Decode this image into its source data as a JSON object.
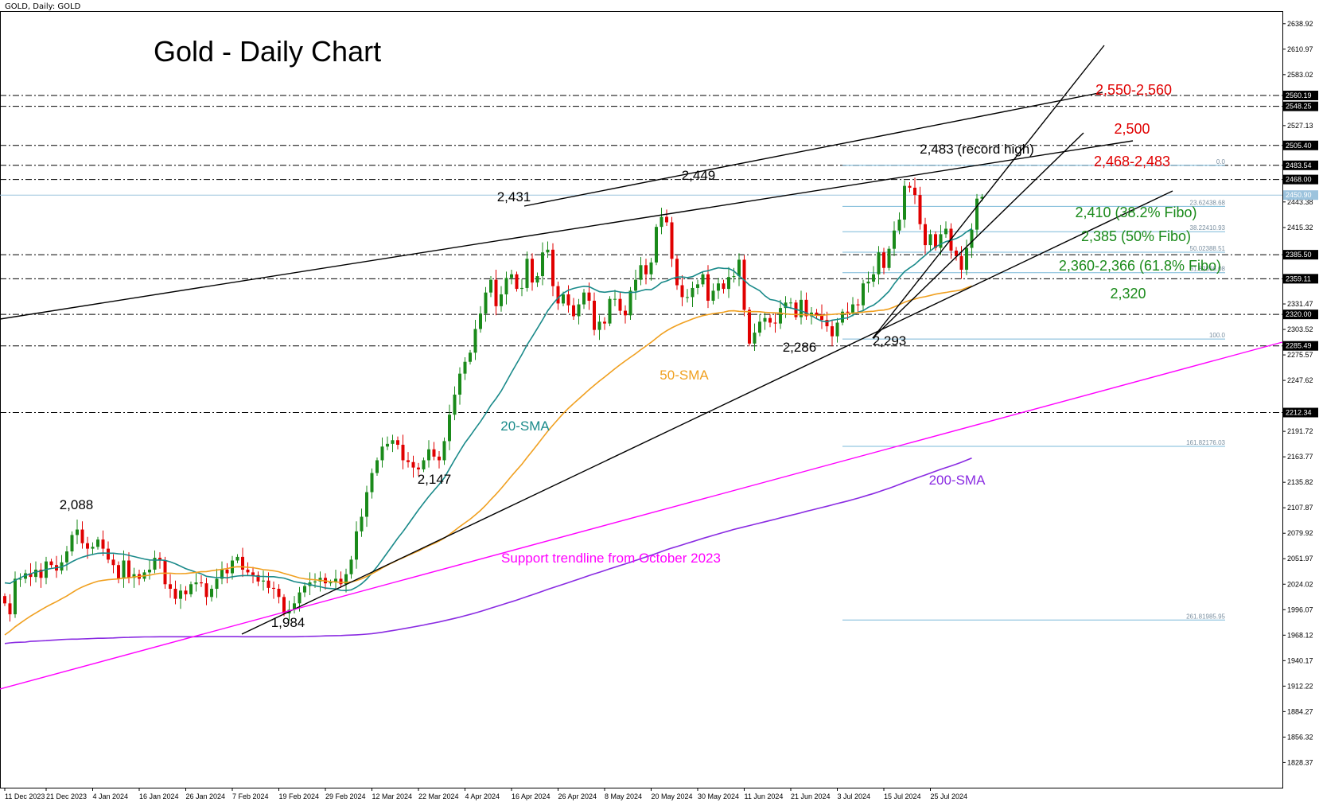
{
  "header": "GOLD, Daily:  GOLD",
  "chart_title": "Gold - Daily Chart",
  "chart_data": {
    "type": "candlestick",
    "symbol": "GOLD",
    "timeframe": "Daily",
    "ylim": [
      1800.8,
      2652.7
    ],
    "x_ticks": [
      "11 Dec 2023",
      "21 Dec 2023",
      "4 Jan 2024",
      "16 Jan 2024",
      "26 Jan 2024",
      "7 Feb 2024",
      "19 Feb 2024",
      "29 Feb 2024",
      "12 Mar 2024",
      "22 Mar 2024",
      "4 Apr 2024",
      "16 Apr 2024",
      "26 Apr 2024",
      "8 May 2024",
      "20 May 2024",
      "30 May 2024",
      "11 Jun 2024",
      "21 Jun 2024",
      "3 Jul 2024",
      "15 Jul 2024",
      "25 Jul 2024"
    ],
    "y_ticks": [
      "2638.92",
      "2610.97",
      "2583.02",
      "2560.19",
      "2548.25",
      "2527.13",
      "2505.40",
      "2483.54",
      "2468.00",
      "2450.90",
      "2443.38",
      "2415.32",
      "2385.50",
      "2359.11",
      "2331.47",
      "2320.00",
      "2303.52",
      "2285.49",
      "2275.57",
      "2247.62",
      "2212.34",
      "2191.72",
      "2163.77",
      "2135.82",
      "2107.87",
      "2079.92",
      "2051.97",
      "2024.02",
      "1996.07",
      "1968.12",
      "1940.17",
      "1912.22",
      "1884.27",
      "1856.32",
      "1828.37"
    ],
    "close": [
      2003,
      1991,
      2030,
      2030,
      2036,
      2032,
      2040,
      2031,
      2049,
      2045,
      2039,
      2048,
      2060,
      2078,
      2084,
      2069,
      2063,
      2065,
      2073,
      2063,
      2051,
      2045,
      2030,
      2050,
      2031,
      2035,
      2030,
      2037,
      2040,
      2053,
      2050,
      2024,
      2019,
      2008,
      2017,
      2013,
      2024,
      2026,
      2025,
      2010,
      2019,
      2030,
      2040,
      2036,
      2050,
      2054,
      2040,
      2037,
      2034,
      2027,
      2028,
      2020,
      2019,
      2010,
      1992,
      1996,
      2003,
      2015,
      2022,
      2026,
      2027,
      2031,
      2025,
      2026,
      2030,
      2024,
      2035,
      2051,
      2082,
      2098,
      2125,
      2146,
      2160,
      2175,
      2178,
      2182,
      2177,
      2160,
      2158,
      2152,
      2150,
      2160,
      2172,
      2164,
      2160,
      2181,
      2210,
      2232,
      2255,
      2268,
      2278,
      2304,
      2321,
      2344,
      2358,
      2329,
      2342,
      2360,
      2364,
      2348,
      2349,
      2381,
      2355,
      2362,
      2388,
      2391,
      2351,
      2332,
      2342,
      2330,
      2318,
      2331,
      2344,
      2335,
      2303,
      2312,
      2310,
      2337,
      2337,
      2324,
      2319,
      2346,
      2358,
      2374,
      2364,
      2377,
      2416,
      2427,
      2421,
      2381,
      2352,
      2339,
      2339,
      2349,
      2353,
      2364,
      2335,
      2346,
      2354,
      2348,
      2361,
      2362,
      2380,
      2325,
      2288,
      2300,
      2312,
      2316,
      2311,
      2310,
      2327,
      2333,
      2333,
      2317,
      2336,
      2318,
      2322,
      2320,
      2314,
      2307,
      2296,
      2311,
      2323,
      2322,
      2331,
      2330,
      2354,
      2356,
      2364,
      2388,
      2371,
      2392,
      2412,
      2424,
      2461,
      2459,
      2451,
      2419,
      2396,
      2408,
      2393,
      2408,
      2414,
      2390,
      2384,
      2369,
      2393,
      2413,
      2447,
      2449
    ],
    "series": [
      {
        "name": "20-SMA",
        "color": "#1a8a8a",
        "values": [
          2025.5,
          2024.9,
          2028.3,
          2031.1,
          2033.7,
          2035.4,
          2037.5,
          2038.3,
          2040.2,
          2041.3,
          2042.1,
          2043.0,
          2045.4,
          2048.7,
          2051.5,
          2053.7,
          2055.4,
          2056.6,
          2057.9,
          2058.2,
          2058.0,
          2058.0,
          2057.3,
          2057.0,
          2055.7,
          2054.4,
          2053.0,
          2051.7,
          2050.6,
          2050.4,
          2050.6,
          2050.2,
          2048.6,
          2046.4,
          2043.8,
          2041.1,
          2039.2,
          2037.2,
          2035.4,
          2032.7,
          2031.9,
          2031.2,
          2031.7,
          2031.0,
          2032.2,
          2033.0,
          2033.5,
          2033.5,
          2033.3,
          2032.6,
          2032.5,
          2032.3,
          2032.3,
          2031.4,
          2030.7,
          2028.8,
          2026.9,
          2025.8,
          2024.8,
          2023.6,
          2022.2,
          2021.3,
          2019.8,
          2019.3,
          2018.8,
          2017.3,
          2017.1,
          2017.8,
          2020.7,
          2024.5,
          2029.6,
          2036.3,
          2043.2,
          2050.9,
          2058.7,
          2066.6,
          2074.5,
          2081.7,
          2089.6,
          2097.6,
          2105.5,
          2112.9,
          2120.3,
          2126.9,
          2133.4,
          2140.8,
          2150.6,
          2160.5,
          2170.0,
          2179.1,
          2186.7,
          2194.7,
          2202.5,
          2211.0,
          2220.2,
          2227.6,
          2235.9,
          2246.0,
          2256.3,
          2266.1,
          2276.0,
          2286.5,
          2295.4,
          2304.7,
          2314.1,
          2324.0,
          2331.6,
          2338.2,
          2343.3,
          2346.6,
          2348.5,
          2349.8,
          2350.9,
          2350.4,
          2347.6,
          2344.9,
          2344.3,
          2345.1,
          2345.7,
          2344.5,
          2343.9,
          2344.1,
          2344.3,
          2345.9,
          2347.4,
          2347.0,
          2350.4,
          2355.0,
          2356.7,
          2359.2,
          2360.9,
          2361.2,
          2360.4,
          2361.4,
          2364.2,
          2366.8,
          2367.9,
          2369.6,
          2371.1,
          2370.5,
          2370.4,
          2367.6,
          2362.2,
          2357.5,
          2352.3,
          2349.1,
          2346.0,
          2340.4,
          2336.4,
          2335.4,
          2333.5,
          2328.3,
          2327.1,
          2325.6,
          2323.9,
          2321.7,
          2318.7,
          2315.3,
          2312.6,
          2311.9,
          2313.7,
          2314.5,
          2315.5,
          2316.2,
          2319.1,
          2322.3,
          2324.2,
          2327.7,
          2330.2,
          2334.5,
          2339.8,
          2345.4,
          2353.5,
          2360.6,
          2366.9,
          2371.0,
          2374.9,
          2380.0,
          2384.8,
          2389.7,
          2394.1,
          2397.1,
          2399.9,
          2401.4,
          2403.2,
          2406.1,
          2410.6,
          2414.1
        ]
      },
      {
        "name": "50-SMA",
        "color": "#f0a020",
        "values": [
          1968.4,
          1972.5,
          1977.3,
          1981.3,
          1985.3,
          1989.1,
          1992.5,
          1995.8,
          1999.1,
          2002.1,
          2004.9,
          2008.0,
          2011.1,
          2014.7,
          2018.2,
          2021.0,
          2023.4,
          2025.5,
          2027.3,
          2028.3,
          2029.0,
          2029.4,
          2029.8,
          2030.7,
          2031.0,
          2032.0,
          2032.5,
          2033.2,
          2033.9,
          2035.1,
          2036.0,
          2036.1,
          2036.1,
          2035.7,
          2035.6,
          2035.8,
          2036.4,
          2037.0,
          2037.7,
          2037.9,
          2038.8,
          2039.6,
          2040.4,
          2041.1,
          2042.5,
          2043.2,
          2043.1,
          2042.6,
          2042.1,
          2041.2,
          2040.0,
          2039.4,
          2038.7,
          2037.7,
          2035.9,
          2034.3,
          2032.6,
          2030.9,
          2030.0,
          2029.3,
          2028.9,
          2028.3,
          2027.6,
          2026.9,
          2026.5,
          2026.0,
          2025.9,
          2026.5,
          2028.0,
          2029.9,
          2032.5,
          2035.5,
          2038.5,
          2041.9,
          2044.9,
          2047.6,
          2050.5,
          2052.9,
          2055.5,
          2058.0,
          2060.5,
          2063.4,
          2066.2,
          2068.7,
          2071.4,
          2074.6,
          2078.5,
          2082.9,
          2087.3,
          2091.4,
          2095.4,
          2100.1,
          2105.0,
          2110.6,
          2116.9,
          2122.7,
          2129.1,
          2135.9,
          2142.7,
          2149.2,
          2155.6,
          2163.0,
          2170.0,
          2177.2,
          2184.6,
          2191.8,
          2198.5,
          2204.9,
          2211.3,
          2217.1,
          2222.2,
          2227.3,
          2232.3,
          2237.5,
          2242.2,
          2246.9,
          2251.3,
          2255.9,
          2260.4,
          2264.8,
          2269.0,
          2273.0,
          2276.9,
          2281.3,
          2285.2,
          2289.4,
          2294.0,
          2298.4,
          2302.1,
          2305.3,
          2308.0,
          2310.5,
          2312.7,
          2315.0,
          2317.0,
          2318.7,
          2319.8,
          2320.8,
          2321.6,
          2322.4,
          2323.8,
          2324.0,
          2323.4,
          2323.1,
          2322.9,
          2323.1,
          2322.9,
          2322.2,
          2322.0,
          2321.7,
          2321.4,
          2320.6,
          2320.1,
          2319.9,
          2319.7,
          2319.5,
          2319.5,
          2319.0,
          2318.8,
          2319.6,
          2320.0,
          2320.5,
          2320.7,
          2320.9,
          2321.4,
          2322.0,
          2322.5,
          2323.1,
          2323.5,
          2324.3,
          2324.8,
          2326.0,
          2328.3,
          2330.7,
          2333.3,
          2335.4,
          2336.9,
          2338.5,
          2339.4,
          2340.8,
          2342.2,
          2343.2,
          2344.1,
          2345.1,
          2345.9,
          2346.9,
          2349.1,
          2351.2
        ]
      },
      {
        "name": "200-SMA",
        "color": "#8a2be2",
        "values": [
          1959.0,
          1959.7,
          1960.2,
          1960.4,
          1960.5,
          1961.3,
          1961.6,
          1961.8,
          1962.1,
          1962.5,
          1962.9,
          1963.3,
          1963.6,
          1963.8,
          1963.8,
          1964.0,
          1964.2,
          1964.5,
          1964.7,
          1964.7,
          1964.9,
          1965.1,
          1965.4,
          1965.6,
          1965.7,
          1965.9,
          1966.0,
          1966.2,
          1966.2,
          1966.3,
          1966.4,
          1966.4,
          1966.4,
          1966.4,
          1966.4,
          1966.4,
          1966.4,
          1966.4,
          1966.5,
          1966.5,
          1966.5,
          1966.5,
          1966.5,
          1966.5,
          1966.5,
          1966.5,
          1966.4,
          1966.4,
          1966.4,
          1966.4,
          1966.4,
          1966.4,
          1966.4,
          1966.4,
          1966.4,
          1966.4,
          1966.4,
          1966.5,
          1966.6,
          1966.8,
          1966.9,
          1967.1,
          1967.3,
          1967.4,
          1967.6,
          1967.7,
          1968.0,
          1968.2,
          1968.5,
          1968.8,
          1969.3,
          1969.8,
          1970.5,
          1971.3,
          1972.2,
          1973.1,
          1974.1,
          1975.1,
          1976.1,
          1977.1,
          1978.2,
          1979.2,
          1980.4,
          1981.5,
          1982.6,
          1983.9,
          1985.2,
          1986.5,
          1987.9,
          1989.4,
          1990.9,
          1992.5,
          1994.1,
          1995.9,
          1997.7,
          1999.5,
          2001.2,
          2003.0,
          2004.8,
          2006.6,
          2008.5,
          2010.5,
          2012.4,
          2014.3,
          2016.3,
          2018.3,
          2020.2,
          2022.1,
          2023.9,
          2025.8,
          2027.7,
          2029.6,
          2031.6,
          2033.5,
          2035.3,
          2037.1,
          2039.0,
          2040.9,
          2042.7,
          2044.5,
          2046.3,
          2048.2,
          2050.1,
          2052.0,
          2053.9,
          2055.8,
          2057.8,
          2059.9,
          2061.9,
          2063.7,
          2065.4,
          2067.1,
          2068.9,
          2070.7,
          2072.5,
          2074.3,
          2075.9,
          2077.6,
          2079.2,
          2080.9,
          2082.5,
          2084.1,
          2085.5,
          2086.9,
          2088.3,
          2089.7,
          2091.1,
          2092.5,
          2093.9,
          2095.3,
          2096.8,
          2098.2,
          2099.6,
          2101.0,
          2102.4,
          2103.9,
          2105.3,
          2106.7,
          2108.1,
          2109.5,
          2111.0,
          2112.5,
          2113.9,
          2115.3,
          2116.9,
          2118.4,
          2120.1,
          2121.8,
          2123.5,
          2125.4,
          2127.3,
          2129.2,
          2131.3,
          2133.4,
          2135.6,
          2137.7,
          2139.8,
          2141.8,
          2143.8,
          2145.9,
          2148.0,
          2150.0,
          2151.9,
          2153.8,
          2155.7,
          2157.8,
          2160.1,
          2162.4
        ]
      }
    ],
    "swing_labels": [
      "2,088",
      "1,984",
      "2,147",
      "2,431",
      "2,449",
      "2,286",
      "2,293",
      "2,483 (record high)"
    ],
    "resistance_labels": [
      "2,550-2,560",
      "2,500",
      "2,468-2,483"
    ],
    "support_labels": [
      "2,410 (38.2% Fibo)",
      "2,385 (50% Fibo)",
      "2,360-2,366 (61.8% Fibo)",
      "2,320"
    ],
    "fibo_labels": [
      "0.0",
      "23.62438.68",
      "38.22410.93",
      "50.02388.51",
      "61.82366.08",
      "100.0",
      "161.82176.03",
      "261.81985.95"
    ],
    "annotations": [
      "20-SMA",
      "50-SMA",
      "200-SMA",
      "Support trendline from October 2023"
    ],
    "horizontal_levels": [
      2560.19,
      2548.25,
      2505.4,
      2483.54,
      2468.0,
      2385.5,
      2359.11,
      2320.0,
      2285.49,
      2212.34
    ],
    "current_price": 2450.9,
    "colors": {
      "bull": "#1a8a1a",
      "bear": "#e00000",
      "resistance_text": "#e00000",
      "support_text": "#1a8a1a",
      "trendline_pink": "#ff00ff",
      "fibo": "#7ab8d8"
    },
    "grid": false
  }
}
